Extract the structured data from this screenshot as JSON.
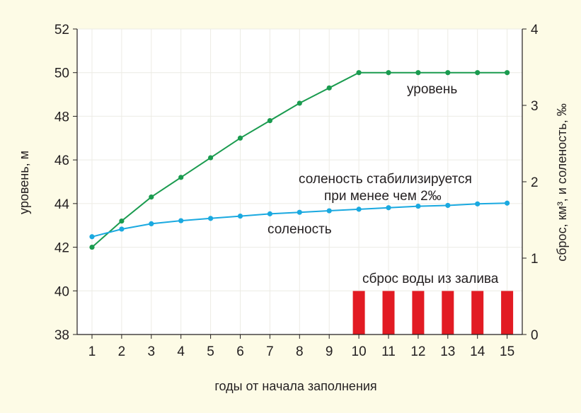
{
  "chart_data": {
    "type": "line",
    "xlabel": "годы от начала заполнения",
    "x": [
      1,
      2,
      3,
      4,
      5,
      6,
      7,
      8,
      9,
      10,
      11,
      12,
      13,
      14,
      15
    ],
    "y_left": {
      "label": "уровень, м",
      "ticks": [
        "52",
        "50",
        "48",
        "46",
        "44",
        "42",
        "40",
        "38"
      ],
      "range": [
        38,
        52
      ]
    },
    "y_right": {
      "label": "сброс, км³, и соленость, ‰",
      "ticks": [
        "4",
        "3",
        "2",
        "1",
        "0"
      ],
      "range": [
        0,
        4
      ]
    },
    "series": [
      {
        "name": "уровень",
        "axis": "left",
        "color": "#1a9b4f",
        "values": [
          42.0,
          43.2,
          44.3,
          45.2,
          46.1,
          47.0,
          47.8,
          48.6,
          49.3,
          50.0,
          50.0,
          50.0,
          50.0,
          50.0,
          50.0
        ]
      },
      {
        "name": "соленость",
        "axis": "right",
        "color": "#1aa9e0",
        "values": [
          1.28,
          1.38,
          1.45,
          1.49,
          1.52,
          1.55,
          1.58,
          1.6,
          1.62,
          1.64,
          1.66,
          1.68,
          1.69,
          1.71,
          1.72
        ]
      },
      {
        "name": "сброс воды из залива",
        "axis": "right",
        "type": "bar",
        "color": "#e21b23",
        "values": [
          0,
          0,
          0,
          0,
          0,
          0,
          0,
          0,
          0,
          0.57,
          0.57,
          0.57,
          0.57,
          0.57,
          0.57
        ]
      }
    ],
    "annotations": {
      "level": "уровень",
      "salinity": "соленость",
      "stabilizes_line1": "соленость стабилизируется",
      "stabilizes_line2": "при менее чем 2‰",
      "discharge": "сброс воды из залива"
    }
  }
}
